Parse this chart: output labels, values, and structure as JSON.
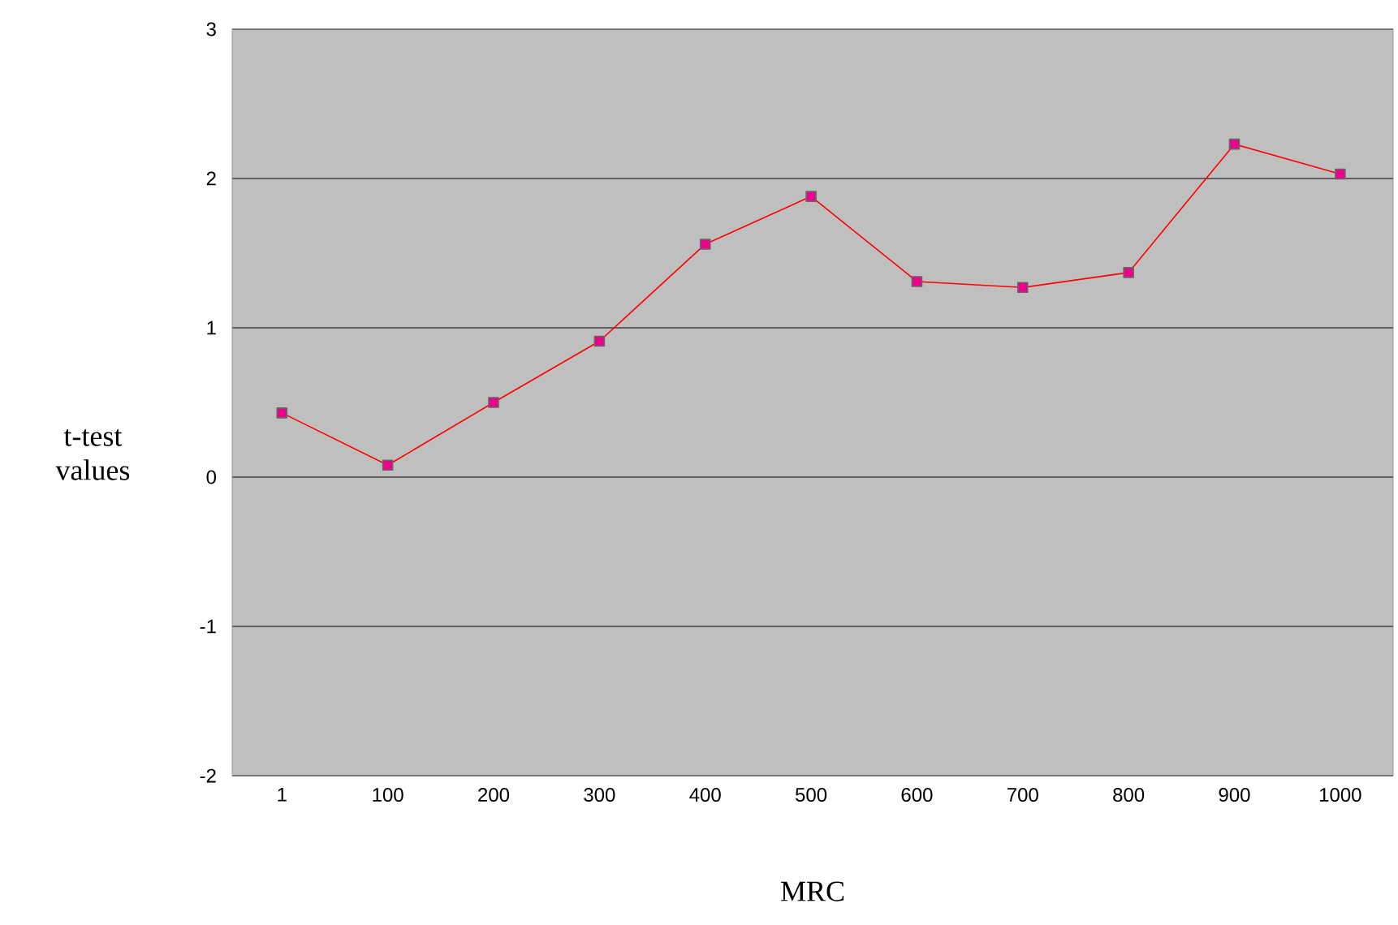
{
  "chart_data": {
    "type": "line",
    "xlabel": "MRC",
    "ylabel": "t-test values",
    "categories": [
      "1",
      "100",
      "200",
      "300",
      "400",
      "500",
      "600",
      "700",
      "800",
      "900",
      "1000"
    ],
    "series": [
      {
        "color": "#ff0000",
        "values": [
          0.43,
          0.08,
          0.5,
          0.91,
          1.56,
          1.88,
          1.31,
          1.27,
          1.37,
          2.23,
          2.03
        ]
      }
    ],
    "ylim": [
      -2,
      3
    ],
    "yticks": [
      -2,
      -1,
      0,
      1,
      2,
      3
    ],
    "grid": "y",
    "marker": "square",
    "line_style": "solid"
  }
}
